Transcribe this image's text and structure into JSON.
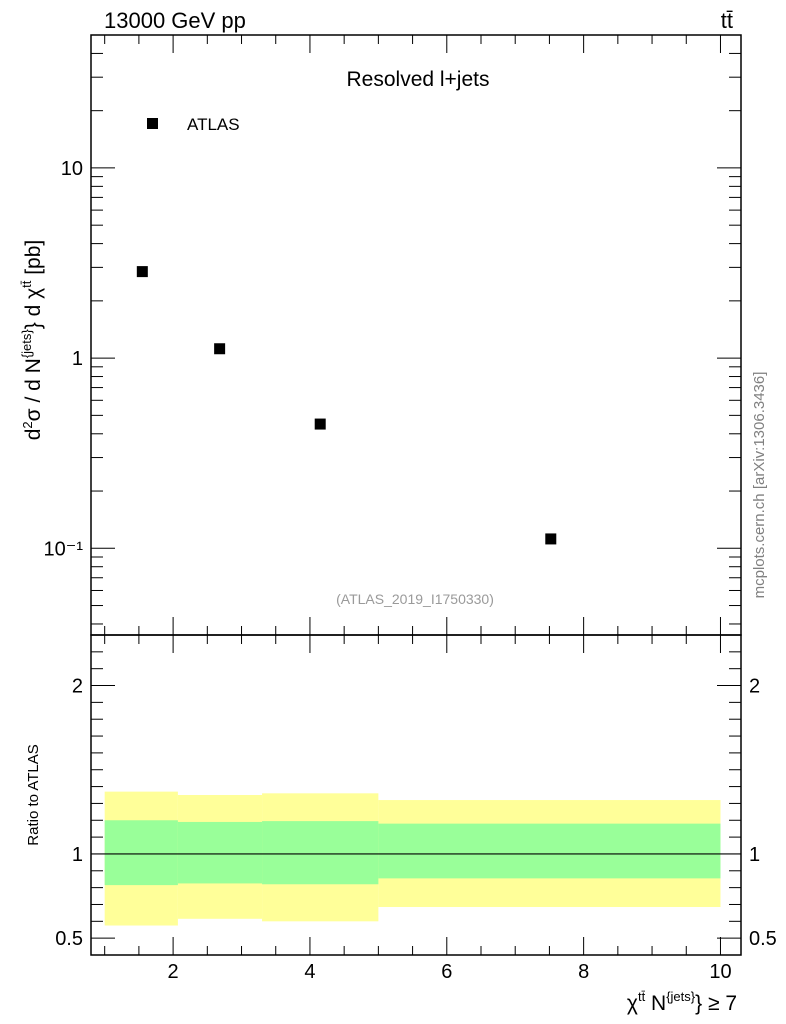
{
  "header": {
    "energy_label": "13000 GeV pp",
    "process_label": "tt̄"
  },
  "side_label": "mcplots.cern.ch [arXiv:1306.3436]",
  "chart_data": [
    {
      "type": "scatter",
      "title": "Resolved l+jets",
      "analysis_label": "(ATLAS_2019_I1750330)",
      "ylabel": "d²σ / d N^{jets} d χ^{tt̄} [pb]",
      "yscale": "log",
      "xlim": [
        0.8,
        10.3
      ],
      "ylim": [
        0.035,
        50
      ],
      "y_tick_labels": [
        "10",
        "1",
        "10⁻¹"
      ],
      "legend": {
        "position": "top-left",
        "entries": [
          "ATLAS"
        ]
      },
      "series": [
        {
          "name": "ATLAS",
          "marker": "square",
          "color": "#000000",
          "x": [
            1.55,
            2.68,
            4.15,
            7.52
          ],
          "y": [
            2.85,
            1.12,
            0.45,
            0.112
          ]
        }
      ]
    },
    {
      "type": "area",
      "ylabel": "Ratio to ATLAS",
      "xlabel": "χ^{tt̄} N^{jets} ≥ 7",
      "xlim": [
        0.8,
        10.3
      ],
      "ylim": [
        0.4,
        2.3
      ],
      "x_tick_labels": [
        "2",
        "4",
        "6",
        "8",
        "10"
      ],
      "y_tick_labels": [
        "0.5",
        "1",
        "2"
      ],
      "reference_line": 1,
      "bins": [
        [
          1.0,
          2.07
        ],
        [
          2.07,
          3.3
        ],
        [
          3.3,
          5.0
        ],
        [
          5.0,
          10.0
        ]
      ],
      "inner_band": {
        "color": "#99ff99",
        "low": [
          0.815,
          0.825,
          0.82,
          0.855
        ],
        "high": [
          1.2,
          1.19,
          1.195,
          1.18
        ]
      },
      "outer_band": {
        "color": "#ffff99",
        "low": [
          0.575,
          0.615,
          0.6,
          0.685
        ],
        "high": [
          1.37,
          1.35,
          1.36,
          1.32
        ]
      }
    }
  ]
}
